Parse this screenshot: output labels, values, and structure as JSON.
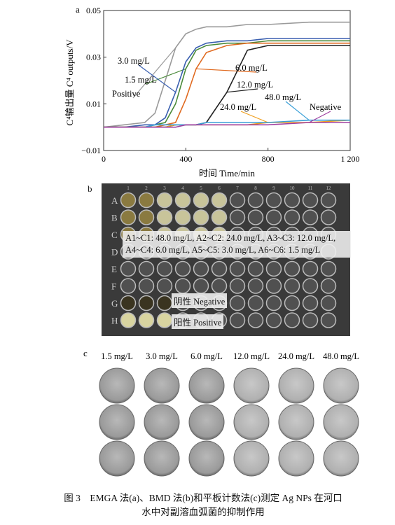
{
  "chart_data": {
    "type": "line",
    "label": "a",
    "xlabel": "时间 Time/min",
    "ylabel": "C⁴输出量 C⁴ outputs/V",
    "x": [
      0,
      100,
      200,
      250,
      300,
      350,
      400,
      450,
      500,
      600,
      700,
      800,
      1000,
      1200
    ],
    "xlim": [
      0,
      1200
    ],
    "xticks": [
      0,
      400,
      800,
      {
        "value": 1200,
        "label": "1 200"
      }
    ],
    "ylim": [
      -0.01,
      0.05
    ],
    "yticks": [
      {
        "value": -0.01,
        "label": "−0.01"
      },
      0.01,
      0.03,
      0.05
    ],
    "series": [
      {
        "name": "Positive",
        "color": "#9a9a9a",
        "values": [
          0,
          0.001,
          0.002,
          0.006,
          0.02,
          0.034,
          0.04,
          0.042,
          0.043,
          0.043,
          0.044,
          0.044,
          0.045,
          0.045
        ]
      },
      {
        "name": "1.5 mg/L",
        "color": "#4a8a3a",
        "values": [
          0,
          0,
          0,
          0.001,
          0.002,
          0.01,
          0.025,
          0.033,
          0.035,
          0.036,
          0.036,
          0.037,
          0.037,
          0.037
        ]
      },
      {
        "name": "3.0 mg/L",
        "color": "#3a5fb0",
        "values": [
          0,
          0,
          0.001,
          0.001,
          0.004,
          0.015,
          0.028,
          0.034,
          0.036,
          0.037,
          0.037,
          0.038,
          0.038,
          0.038
        ]
      },
      {
        "name": "6.0 mg/L",
        "color": "#e06a20",
        "values": [
          0,
          0,
          0,
          0,
          0.001,
          0.002,
          0.012,
          0.025,
          0.032,
          0.035,
          0.036,
          0.036,
          0.036,
          0.036
        ]
      },
      {
        "name": "12.0 mg/L",
        "color": "#222222",
        "values": [
          0,
          0,
          0,
          0,
          0,
          0.001,
          0.001,
          0.001,
          0.002,
          0.015,
          0.033,
          0.035,
          0.035,
          0.035
        ]
      },
      {
        "name": "24.0 mg/L",
        "color": "#f0a020",
        "values": [
          0,
          0,
          0,
          0,
          0,
          0.001,
          0.001,
          0.001,
          0.001,
          0.001,
          0.001,
          0.002,
          0.002,
          0.003
        ]
      },
      {
        "name": "48.0 mg/L",
        "color": "#3aa0d8",
        "values": [
          0,
          0,
          0,
          0.001,
          0.001,
          0.001,
          0.001,
          0.001,
          0.002,
          0.002,
          0.002,
          0.002,
          0.003,
          0.003
        ]
      },
      {
        "name": "Negative",
        "color": "#a040a0",
        "values": [
          0,
          0,
          0,
          0,
          0,
          0,
          0.001,
          0.001,
          0.001,
          0.001,
          0.001,
          0.001,
          0.002,
          0.002
        ]
      }
    ]
  },
  "panel_b": {
    "label": "b",
    "rows": [
      "A",
      "B",
      "C",
      "D",
      "E",
      "F",
      "G",
      "H"
    ],
    "columns": [
      "1",
      "2",
      "3",
      "4",
      "5",
      "6",
      "7",
      "8",
      "9",
      "10",
      "11",
      "12"
    ],
    "note": "A1~C1: 48.0 mg/L, A2~C2: 24.0 mg/L, A3~C3: 12.0 mg/L, A4~C4: 6.0 mg/L, A5~C5: 3.0 mg/L, A6~C6: 1.5 mg/L",
    "negative": "阴性 Negative",
    "positive": "阳性 Positive"
  },
  "panel_c": {
    "label": "c",
    "concentrations": [
      "1.5 mg/L",
      "3.0 mg/L",
      "6.0 mg/L",
      "12.0 mg/L",
      "24.0 mg/L",
      "48.0 mg/L"
    ]
  },
  "caption": {
    "figure": "图 3",
    "text": "EMGA 法(a)、BMD 法(b)和平板计数法(c)测定 Ag NPs 在河口水中对副溶血弧菌的抑制作用"
  }
}
